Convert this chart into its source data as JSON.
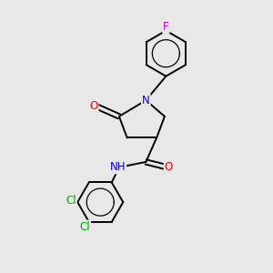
{
  "background_color": "#e8e8e8",
  "bond_color": "#000000",
  "atom_colors": {
    "O": "#ff0000",
    "N": "#0000ff",
    "F": "#cc00cc",
    "Cl": "#00aa00",
    "C": "#000000",
    "H": "#000000"
  },
  "figsize": [
    3.0,
    3.0
  ],
  "dpi": 100,
  "bond_lw": 1.4,
  "font_size": 8.5
}
